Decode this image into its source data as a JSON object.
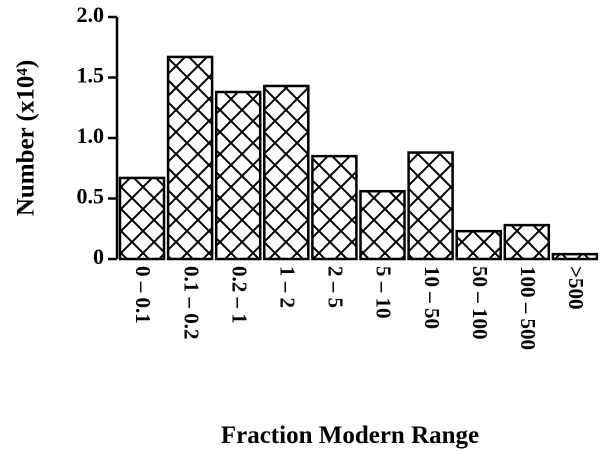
{
  "chart_data": {
    "type": "bar",
    "categories": [
      "0 – 0.1",
      "0.1 – 0.2",
      "0.2 – 1",
      "1 – 2",
      "2 – 5",
      "5 – 10",
      "10 – 50",
      "50 – 100",
      "100 – 500",
      ">500"
    ],
    "values": [
      0.67,
      1.67,
      1.38,
      1.43,
      0.85,
      0.56,
      0.88,
      0.23,
      0.28,
      0.04
    ],
    "xlabel": "Fraction Modern Range",
    "ylabel": "Number (x10⁴)",
    "ylim": [
      0,
      2.0
    ],
    "yticks": [
      0,
      0.5,
      1.0,
      1.5,
      2.0
    ],
    "ytick_labels": [
      "0",
      "0.5",
      "1.0",
      "1.5",
      "2.0"
    ],
    "bar_pattern": "crosshatch",
    "grid": false,
    "legend": "none"
  }
}
